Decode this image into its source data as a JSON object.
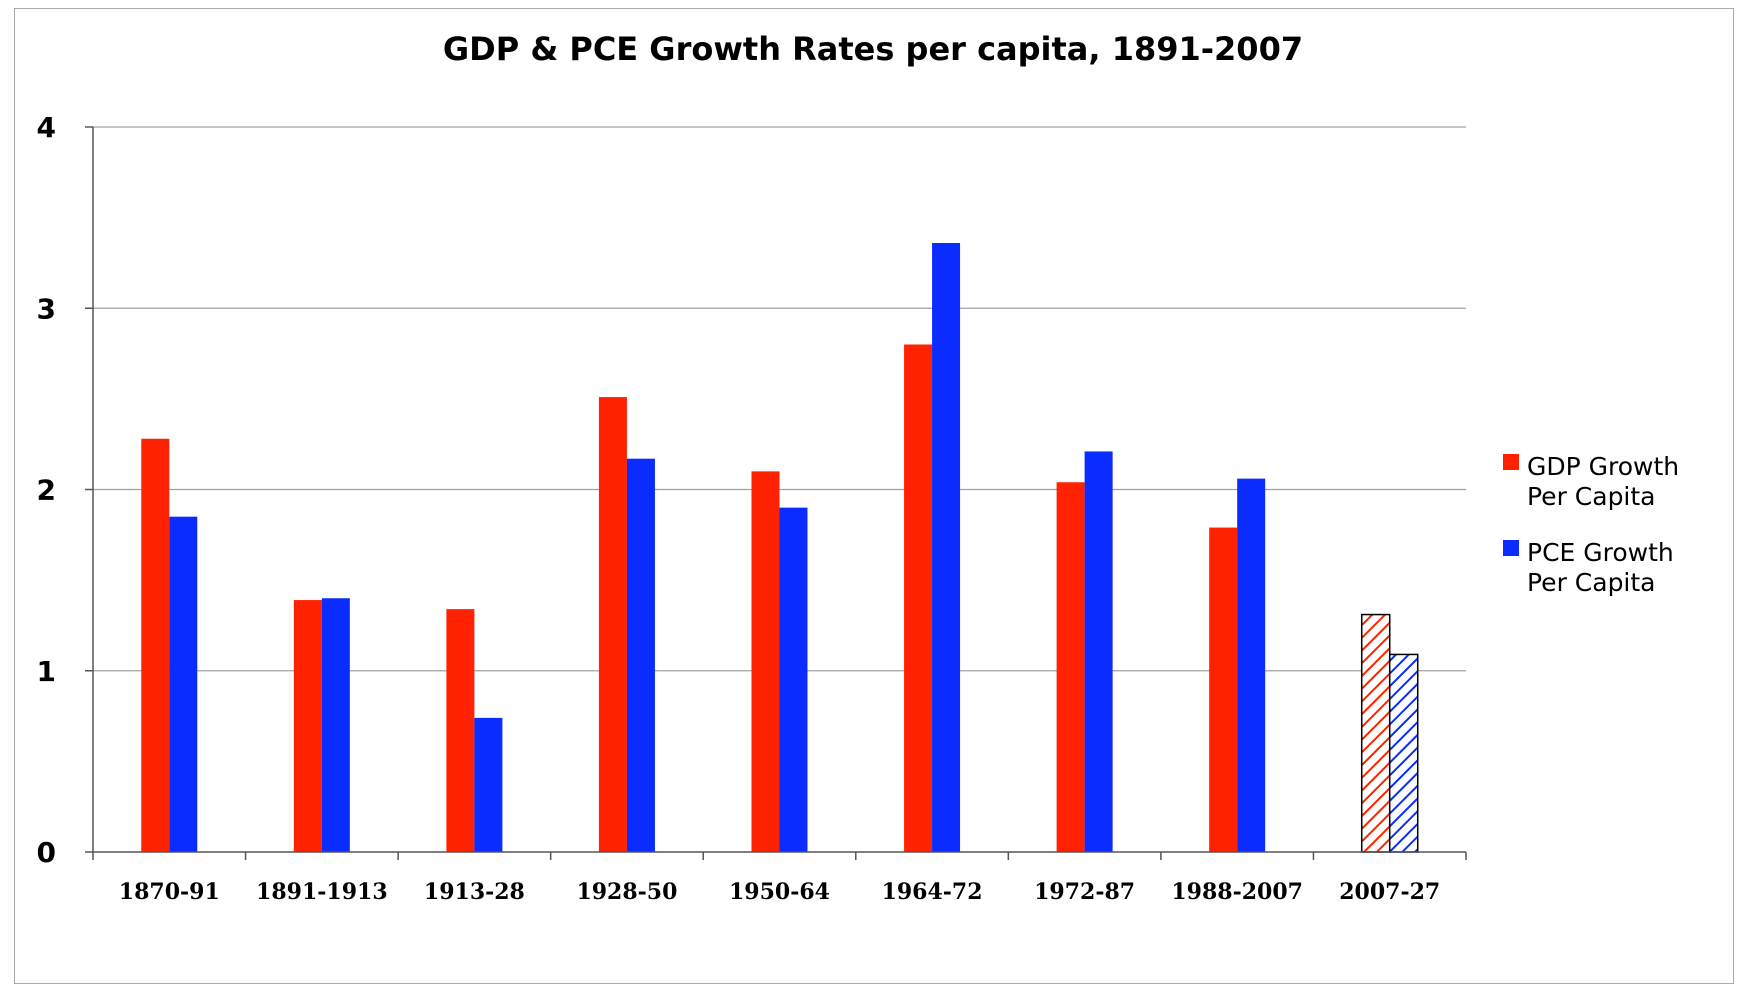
{
  "chart_data": {
    "type": "bar",
    "title": "GDP & PCE Growth Rates per capita, 1891-2007",
    "xlabel": "",
    "ylabel": "",
    "ylim": [
      0,
      4
    ],
    "yticks": [
      "0",
      "1",
      "2",
      "3",
      "4"
    ],
    "grid": true,
    "legend_position": "right",
    "categories": [
      "1870-91",
      "1891-1913",
      "1913-28",
      "1928-50",
      "1950-64",
      "1964-72",
      "1972-87",
      "1988-2007",
      "2007-27"
    ],
    "series": [
      {
        "name": "GDP Growth Per Capita",
        "legend_lines": [
          "GDP Growth",
          "Per Capita"
        ],
        "color": "#ff2200",
        "values": [
          2.28,
          1.39,
          1.34,
          2.51,
          2.1,
          2.8,
          2.04,
          1.79,
          1.31
        ]
      },
      {
        "name": "PCE Growth Per Capita",
        "legend_lines": [
          "PCE Growth",
          "Per Capita"
        ],
        "color": "#0a2cff",
        "values": [
          1.85,
          1.4,
          0.74,
          2.17,
          1.9,
          3.36,
          2.21,
          2.06,
          1.09
        ]
      }
    ],
    "hatched_categories": [
      "2007-27"
    ]
  }
}
